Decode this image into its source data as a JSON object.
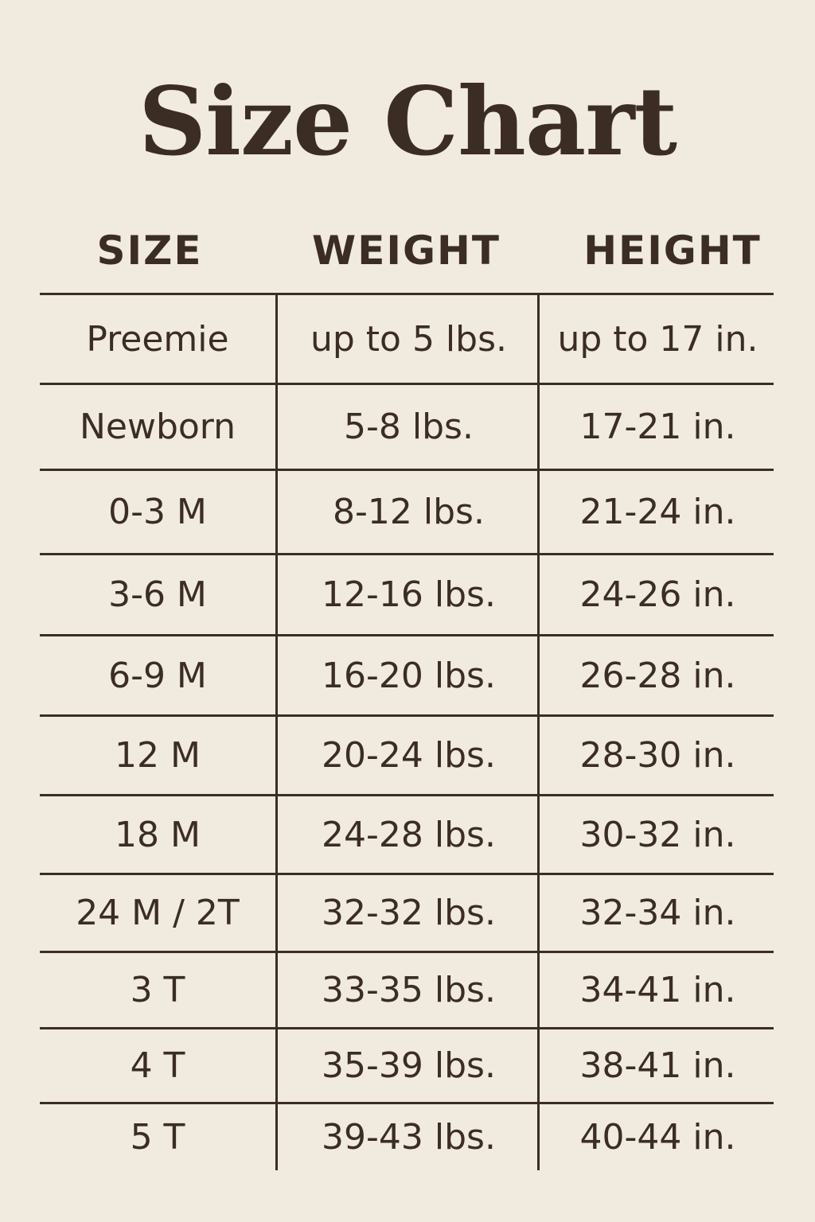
{
  "title": "Size Chart",
  "columns": [
    "SIZE",
    "WEIGHT",
    "HEIGHT"
  ],
  "rows": [
    [
      "Preemie",
      "up to 5 lbs.",
      "up to 17 in."
    ],
    [
      "Newborn",
      "5-8 lbs.",
      "17-21 in."
    ],
    [
      "0-3 M",
      "8-12 lbs.",
      "21-24 in."
    ],
    [
      "3-6 M",
      "12-16 lbs.",
      "24-26 in."
    ],
    [
      "6-9 M",
      "16-20 lbs.",
      "26-28 in."
    ],
    [
      "12 M",
      "20-24 lbs.",
      "28-30 in."
    ],
    [
      "18 M",
      "24-28 lbs.",
      "30-32 in."
    ],
    [
      "24 M / 2T",
      "32-32 lbs.",
      "32-34 in."
    ],
    [
      "3 T",
      "33-35 lbs.",
      "34-41 in."
    ],
    [
      "4 T",
      "35-39 lbs.",
      "38-41 in."
    ],
    [
      "5 T",
      "39-43 lbs.",
      "40-44 in."
    ]
  ],
  "colors": {
    "background": "#f1eadf",
    "text": "#3b2d24"
  }
}
